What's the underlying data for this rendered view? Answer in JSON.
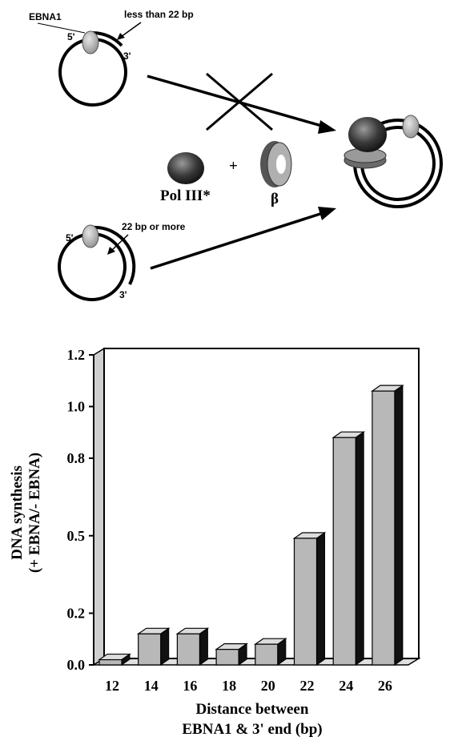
{
  "diagram": {
    "ebna1_label": "EBNA1",
    "less_label": "less than 22 bp",
    "more_label": "22 bp or more",
    "five_prime": "5'",
    "three_prime": "3'",
    "pol_label": "Pol III*",
    "plus": "+",
    "beta_label": "β"
  },
  "chart_data": {
    "type": "bar",
    "categories": [
      "12",
      "14",
      "16",
      "18",
      "20",
      "22",
      "24",
      "26"
    ],
    "values": [
      0.02,
      0.12,
      0.12,
      0.06,
      0.08,
      0.49,
      0.88,
      1.06
    ],
    "ylabel_line1": "DNA synthesis",
    "ylabel_line2": "(+ EBNA/- EBNA)",
    "xlabel_line1": "Distance between",
    "xlabel_line2": "EBNA1 & 3' end (bp)",
    "yticks": [
      0.0,
      0.2,
      0.5,
      0.8,
      1.0,
      1.2
    ],
    "ytick_labels": [
      "0.0",
      "0.2",
      "0.5",
      "0.8",
      "1.0",
      "1.2"
    ],
    "ylim": [
      0,
      1.2
    ],
    "bar_color": "#b8b8b8"
  }
}
